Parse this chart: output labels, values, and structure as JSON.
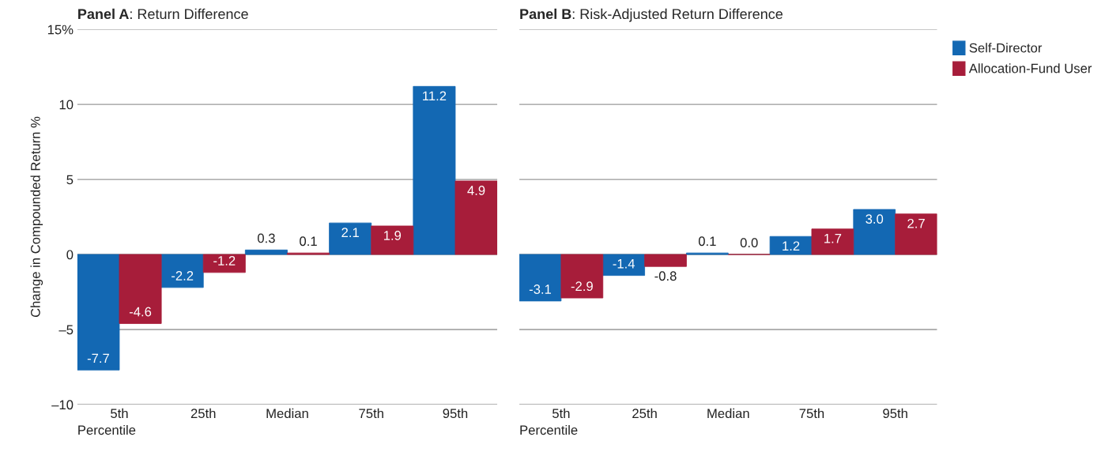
{
  "chart_data": [
    {
      "type": "bar",
      "title": "Panel A: Return Difference",
      "xlabel": "Percentile",
      "ylabel": "Change in Compounded Return %",
      "categories": [
        "5th",
        "25th",
        "Median",
        "75th",
        "95th"
      ],
      "series": [
        {
          "color": "#1368b3",
          "values": [
            -7.7,
            -2.2,
            0.3,
            2.1,
            11.2
          ],
          "value_labels": [
            "-7.7",
            "-2.2",
            "0.3",
            "2.1",
            "11.2"
          ]
        },
        {
          "color": "#a71d3a",
          "values": [
            -4.6,
            -1.2,
            0.1,
            1.9,
            4.9
          ],
          "value_labels": [
            "-4.6",
            "-1.2",
            "0.1",
            "1.9",
            "4.9"
          ]
        }
      ],
      "ylim": [
        -10,
        15
      ],
      "yticks": [
        {
          "value": 15,
          "label": "15%"
        },
        10,
        5,
        0,
        {
          "value": -5,
          "label": "–5"
        },
        {
          "value": -10,
          "label": "–10"
        }
      ],
      "grid": "y",
      "legend": false
    },
    {
      "type": "bar",
      "title": "Panel B: Risk-Adjusted Return Difference",
      "xlabel": "Percentile",
      "categories": [
        "5th",
        "25th",
        "Median",
        "75th",
        "95th"
      ],
      "series": [
        {
          "name": "Self-Director",
          "color": "#1368b3",
          "values": [
            -3.1,
            -1.4,
            0.1,
            1.2,
            3.0
          ],
          "value_labels": [
            "-3.1",
            "-1.4",
            "0.1",
            "1.2",
            "3.0"
          ]
        },
        {
          "name": "Allocation-Fund User",
          "color": "#a71d3a",
          "values": [
            -2.9,
            -0.8,
            0.0,
            1.7,
            2.7
          ],
          "value_labels": [
            "-2.9",
            "-0.8",
            "0.0",
            "1.7",
            "2.7"
          ]
        }
      ],
      "ylim": [
        -10,
        15
      ],
      "yticks": [
        15,
        10,
        5,
        0,
        -5,
        -10
      ],
      "grid": "y",
      "legend": "right",
      "tick_labels": "x"
    }
  ]
}
